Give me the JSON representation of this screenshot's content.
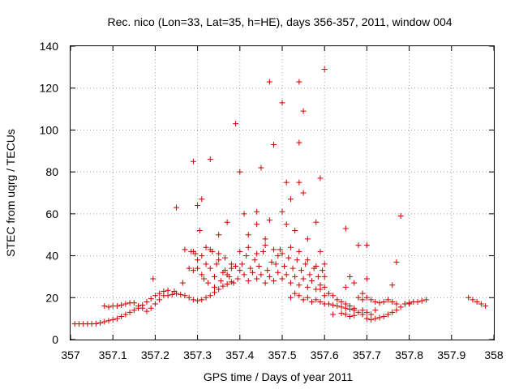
{
  "chart_data": {
    "type": "scatter",
    "title": "Rec. nico (Lon=33, Lat=35, h=HE), days 356-357, 2011, window 004",
    "xlabel": "GPS time / Days of year 2011",
    "ylabel": "STEC from uqrg / TECUs",
    "xlim": [
      357,
      358
    ],
    "ylim": [
      0,
      140
    ],
    "xticks": [
      "357",
      "357.1",
      "357.2",
      "357.3",
      "357.4",
      "357.5",
      "357.6",
      "357.7",
      "357.8",
      "357.9",
      "358"
    ],
    "yticks": [
      "0",
      "20",
      "40",
      "60",
      "80",
      "100",
      "120",
      "140"
    ],
    "grid": true,
    "marker": "plus",
    "color": "#cc0000",
    "series": [
      {
        "points": [
          [
            357.01,
            7.5
          ],
          [
            357.02,
            7.5
          ],
          [
            357.03,
            7.5
          ],
          [
            357.04,
            7.5
          ],
          [
            357.05,
            7.5
          ],
          [
            357.06,
            7.6
          ],
          [
            357.07,
            8.0
          ],
          [
            357.08,
            8.5
          ],
          [
            357.09,
            9.0
          ],
          [
            357.1,
            9.5
          ],
          [
            357.11,
            10.0
          ],
          [
            357.12,
            11.0
          ],
          [
            357.13,
            12.0
          ],
          [
            357.14,
            13.0
          ],
          [
            357.15,
            14.0
          ],
          [
            357.16,
            15.0
          ],
          [
            357.17,
            16.5
          ],
          [
            357.18,
            18.0
          ],
          [
            357.19,
            19.5
          ],
          [
            357.2,
            21.0
          ],
          [
            357.21,
            22.0
          ],
          [
            357.22,
            23.0
          ],
          [
            357.23,
            23.5
          ],
          [
            357.08,
            16.0
          ],
          [
            357.09,
            15.5
          ],
          [
            357.1,
            16.0
          ],
          [
            357.11,
            16.0
          ],
          [
            357.12,
            16.5
          ],
          [
            357.13,
            17.0
          ],
          [
            357.14,
            17.5
          ],
          [
            357.15,
            17.5
          ],
          [
            357.16,
            16.0
          ],
          [
            357.17,
            15.0
          ],
          [
            357.18,
            13.5
          ],
          [
            357.19,
            15.0
          ],
          [
            357.2,
            17.0
          ],
          [
            357.21,
            19.0
          ],
          [
            357.22,
            21.0
          ],
          [
            357.23,
            21.0
          ],
          [
            357.24,
            21.5
          ],
          [
            357.25,
            22.0
          ],
          [
            357.26,
            21.5
          ],
          [
            357.27,
            21.0
          ],
          [
            357.28,
            20.0
          ],
          [
            357.29,
            19.0
          ],
          [
            357.3,
            18.5
          ],
          [
            357.31,
            19.0
          ],
          [
            357.32,
            20.0
          ],
          [
            357.33,
            21.0
          ],
          [
            357.34,
            22.5
          ],
          [
            357.35,
            24.0
          ],
          [
            357.36,
            25.5
          ],
          [
            357.37,
            26.5
          ],
          [
            357.38,
            27.5
          ],
          [
            357.195,
            29.0
          ],
          [
            357.245,
            23.0
          ],
          [
            357.265,
            27.0
          ],
          [
            357.27,
            43.0
          ],
          [
            357.28,
            34.0
          ],
          [
            357.285,
            42.0
          ],
          [
            357.29,
            33.0
          ],
          [
            357.295,
            41.0
          ],
          [
            357.3,
            34.0
          ],
          [
            357.3,
            38.0
          ],
          [
            357.305,
            52.0
          ],
          [
            357.31,
            31.0
          ],
          [
            357.315,
            29.0
          ],
          [
            357.32,
            44.0
          ],
          [
            357.32,
            36.0
          ],
          [
            357.325,
            27.0
          ],
          [
            357.33,
            34.0
          ],
          [
            357.335,
            42.0
          ],
          [
            357.34,
            30.0
          ],
          [
            357.34,
            25.0
          ],
          [
            357.345,
            36.0
          ],
          [
            357.35,
            41.0
          ],
          [
            357.355,
            28.0
          ],
          [
            357.36,
            32.0
          ],
          [
            357.365,
            33.0
          ],
          [
            357.365,
            39.0
          ],
          [
            357.37,
            31.0
          ],
          [
            357.375,
            30.0
          ],
          [
            357.38,
            34.0
          ],
          [
            357.385,
            27.0
          ],
          [
            357.39,
            35.0
          ],
          [
            357.395,
            29.0
          ],
          [
            357.4,
            33.0
          ],
          [
            357.405,
            36.0
          ],
          [
            357.41,
            31.0
          ],
          [
            357.415,
            40.0
          ],
          [
            357.42,
            28.0
          ],
          [
            357.425,
            34.0
          ],
          [
            357.43,
            32.0
          ],
          [
            357.435,
            38.0
          ],
          [
            357.44,
            29.0
          ],
          [
            357.445,
            35.0
          ],
          [
            357.45,
            31.0
          ],
          [
            357.455,
            42.0
          ],
          [
            357.46,
            27.0
          ],
          [
            357.465,
            33.0
          ],
          [
            357.47,
            30.0
          ],
          [
            357.475,
            37.0
          ],
          [
            357.48,
            28.0
          ],
          [
            357.485,
            36.0
          ],
          [
            357.49,
            32.0
          ],
          [
            357.495,
            43.0
          ],
          [
            357.5,
            29.0
          ],
          [
            357.505,
            35.0
          ],
          [
            357.51,
            31.0
          ],
          [
            357.515,
            39.0
          ],
          [
            357.52,
            27.0
          ],
          [
            357.525,
            34.0
          ],
          [
            357.53,
            30.0
          ],
          [
            357.535,
            38.0
          ],
          [
            357.54,
            26.0
          ],
          [
            357.545,
            33.0
          ],
          [
            357.55,
            29.0
          ],
          [
            357.555,
            36.0
          ],
          [
            357.56,
            25.0
          ],
          [
            357.565,
            31.0
          ],
          [
            357.57,
            28.0
          ],
          [
            357.575,
            34.0
          ],
          [
            357.58,
            24.0
          ],
          [
            357.585,
            30.0
          ],
          [
            357.59,
            26.0
          ],
          [
            357.595,
            33.0
          ],
          [
            357.29,
            42.0
          ],
          [
            357.31,
            40.0
          ],
          [
            357.33,
            43.0
          ],
          [
            357.35,
            38.0
          ],
          [
            357.38,
            36.0
          ],
          [
            357.4,
            42.0
          ],
          [
            357.42,
            44.0
          ],
          [
            357.44,
            41.0
          ],
          [
            357.46,
            45.0
          ],
          [
            357.48,
            43.0
          ],
          [
            357.5,
            41.0
          ],
          [
            357.52,
            44.0
          ],
          [
            357.54,
            42.0
          ],
          [
            357.56,
            38.0
          ],
          [
            357.58,
            35.0
          ],
          [
            357.6,
            30.0
          ],
          [
            357.25,
            63.0
          ],
          [
            357.29,
            85.0
          ],
          [
            357.3,
            64.0
          ],
          [
            357.31,
            67.0
          ],
          [
            357.33,
            86.0
          ],
          [
            357.35,
            50.0
          ],
          [
            357.37,
            56.0
          ],
          [
            357.39,
            103.0
          ],
          [
            357.4,
            80.0
          ],
          [
            357.41,
            60.0
          ],
          [
            357.42,
            50.0
          ],
          [
            357.44,
            61.0
          ],
          [
            357.44,
            55.0
          ],
          [
            357.45,
            82.0
          ],
          [
            357.46,
            48.0
          ],
          [
            357.47,
            123.0
          ],
          [
            357.47,
            57.0
          ],
          [
            357.48,
            93.0
          ],
          [
            357.49,
            40.0
          ],
          [
            357.5,
            113.0
          ],
          [
            357.5,
            61.0
          ],
          [
            357.51,
            75.0
          ],
          [
            357.51,
            55.0
          ],
          [
            357.52,
            67.0
          ],
          [
            357.53,
            52.0
          ],
          [
            357.54,
            123.0
          ],
          [
            357.54,
            94.0
          ],
          [
            357.54,
            75.0
          ],
          [
            357.55,
            109.0
          ],
          [
            357.55,
            70.0
          ],
          [
            357.56,
            48.0
          ],
          [
            357.58,
            56.0
          ],
          [
            357.59,
            77.0
          ],
          [
            357.6,
            129.0
          ],
          [
            357.59,
            42.0
          ],
          [
            357.6,
            36.0
          ],
          [
            357.59,
            24.0
          ],
          [
            357.6,
            21.0
          ],
          [
            357.52,
            20.0
          ],
          [
            357.53,
            22.0
          ],
          [
            357.54,
            21.0
          ],
          [
            357.55,
            19.0
          ],
          [
            357.56,
            20.0
          ],
          [
            357.57,
            18.0
          ],
          [
            357.58,
            19.0
          ],
          [
            357.59,
            18.0
          ],
          [
            357.6,
            17.0
          ],
          [
            357.61,
            17.0
          ],
          [
            357.62,
            16.5
          ],
          [
            357.63,
            16.0
          ],
          [
            357.64,
            15.5
          ],
          [
            357.65,
            15.0
          ],
          [
            357.66,
            14.5
          ],
          [
            357.67,
            14.0
          ],
          [
            357.68,
            13.0
          ],
          [
            357.69,
            12.0
          ],
          [
            357.7,
            10.0
          ],
          [
            357.71,
            9.5
          ],
          [
            357.72,
            10.0
          ],
          [
            357.73,
            10.5
          ],
          [
            357.74,
            11.0
          ],
          [
            357.75,
            12.0
          ],
          [
            357.76,
            13.0
          ],
          [
            357.77,
            14.0
          ],
          [
            357.78,
            15.5
          ],
          [
            357.79,
            17.0
          ],
          [
            357.8,
            17.5
          ],
          [
            357.81,
            18.0
          ],
          [
            357.82,
            18.0
          ],
          [
            357.83,
            18.5
          ],
          [
            357.84,
            19.0
          ],
          [
            357.6,
            25.0
          ],
          [
            357.61,
            22.0
          ],
          [
            357.62,
            21.0
          ],
          [
            357.63,
            19.0
          ],
          [
            357.64,
            18.0
          ],
          [
            357.65,
            17.0
          ],
          [
            357.66,
            16.0
          ],
          [
            357.67,
            15.0
          ],
          [
            357.68,
            20.0
          ],
          [
            357.69,
            22.0
          ],
          [
            357.7,
            20.0
          ],
          [
            357.71,
            19.0
          ],
          [
            357.72,
            18.0
          ],
          [
            357.73,
            17.5
          ],
          [
            357.74,
            18.0
          ],
          [
            357.75,
            19.0
          ],
          [
            357.76,
            18.0
          ],
          [
            357.77,
            17.0
          ],
          [
            357.62,
            12.0
          ],
          [
            357.64,
            12.5
          ],
          [
            357.65,
            12.0
          ],
          [
            357.66,
            11.0
          ],
          [
            357.67,
            11.5
          ],
          [
            357.69,
            14.0
          ],
          [
            357.7,
            13.0
          ],
          [
            357.71,
            12.0
          ],
          [
            357.72,
            14.0
          ],
          [
            357.65,
            25.0
          ],
          [
            357.66,
            30.0
          ],
          [
            357.67,
            27.0
          ],
          [
            357.68,
            45.0
          ],
          [
            357.69,
            19.0
          ],
          [
            357.65,
            53.0
          ],
          [
            357.7,
            45.0
          ],
          [
            357.7,
            29.0
          ],
          [
            357.76,
            26.0
          ],
          [
            357.77,
            37.0
          ],
          [
            357.78,
            59.0
          ],
          [
            357.79,
            17.0
          ],
          [
            357.8,
            17.0
          ],
          [
            357.94,
            20.0
          ],
          [
            357.95,
            19.0
          ],
          [
            357.96,
            18.0
          ],
          [
            357.97,
            17.0
          ],
          [
            357.98,
            16.0
          ]
        ]
      }
    ]
  }
}
